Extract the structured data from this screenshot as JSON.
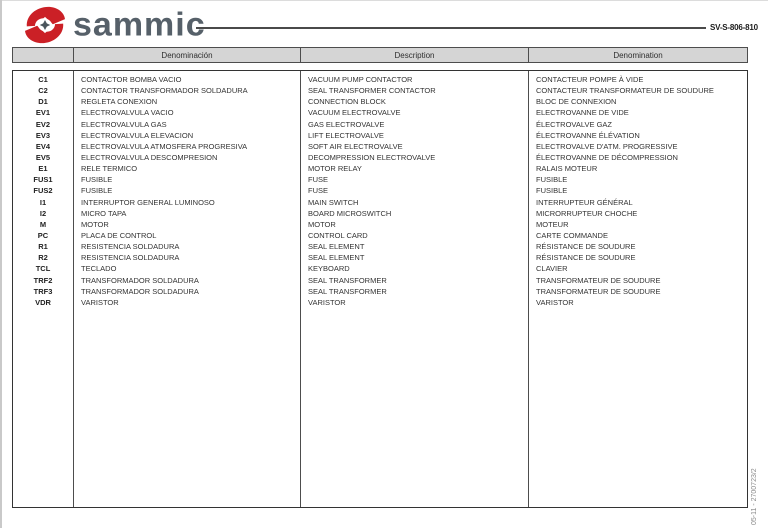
{
  "page": {
    "brand": "sammic",
    "doc_number": "SV-S-806-810",
    "side_number": "05-11 - 2700723/2"
  },
  "colors": {
    "brand_red": "#cb2026",
    "brand_grey": "#566069",
    "header_bg": "#d5d5d5",
    "border": "#333333"
  },
  "table": {
    "headers": {
      "code": "",
      "es": "Denominación",
      "en": "Description",
      "fr": "Denomination"
    },
    "rows": [
      {
        "code": "C1",
        "es": "CONTACTOR BOMBA VACIO",
        "en": "VACUUM PUMP CONTACTOR",
        "fr": "CONTACTEUR POMPE À VIDE"
      },
      {
        "code": "C2",
        "es": "CONTACTOR TRANSFORMADOR SOLDADURA",
        "en": "SEAL TRANSFORMER CONTACTOR",
        "fr": "CONTACTEUR TRANSFORMATEUR DE SOUDURE"
      },
      {
        "code": "D1",
        "es": "REGLETA CONEXION",
        "en": "CONNECTION BLOCK",
        "fr": "BLOC DE CONNEXION"
      },
      {
        "code": "EV1",
        "es": "ELECTROVALVULA VACIO",
        "en": "VACUUM ELECTROVALVE",
        "fr": "ELECTROVANNE DE VIDE"
      },
      {
        "code": "EV2",
        "es": "ELECTROVALVULA GAS",
        "en": "GAS ELECTROVALVE",
        "fr": "ÉLECTROVALVE GAZ"
      },
      {
        "code": "EV3",
        "es": "ELECTROVALVULA ELEVACION",
        "en": "LIFT ELECTROVALVE",
        "fr": "ÉLECTROVANNE ÉLÉVATION"
      },
      {
        "code": "EV4",
        "es": "ELECTROVALVULA ATMOSFERA PROGRESIVA",
        "en": "SOFT AIR ELECTROVALVE",
        "fr": "ELECTROVALVE D'ATM. PROGRESSIVE"
      },
      {
        "code": "EV5",
        "es": "ELECTROVALVULA DESCOMPRESION",
        "en": "DECOMPRESSION ELECTROVALVE",
        "fr": "ÉLECTROVANNE DE DÉCOMPRESSION"
      },
      {
        "code": "E1",
        "es": "RELE TERMICO",
        "en": "MOTOR RELAY",
        "fr": "RALAIS MOTEUR"
      },
      {
        "code": "FUS1",
        "es": "FUSIBLE",
        "en": "FUSE",
        "fr": "FUSIBLE"
      },
      {
        "code": "FUS2",
        "es": "FUSIBLE",
        "en": "FUSE",
        "fr": "FUSIBLE"
      },
      {
        "code": "I1",
        "es": "INTERRUPTOR GENERAL LUMINOSO",
        "en": "MAIN SWITCH",
        "fr": "INTERRUPTEUR GÉNÉRAL"
      },
      {
        "code": "I2",
        "es": "MICRO TAPA",
        "en": "BOARD MICROSWITCH",
        "fr": "MICRORRUPTEUR CHOCHE"
      },
      {
        "code": "M",
        "es": "MOTOR",
        "en": "MOTOR",
        "fr": "MOTEUR"
      },
      {
        "code": "PC",
        "es": "PLACA DE CONTROL",
        "en": "CONTROL CARD",
        "fr": "CARTE COMMANDE"
      },
      {
        "code": "R1",
        "es": "RESISTENCIA SOLDADURA",
        "en": "SEAL ELEMENT",
        "fr": "RÉSISTANCE DE SOUDURE"
      },
      {
        "code": "R2",
        "es": "RESISTENCIA SOLDADURA",
        "en": "SEAL ELEMENT",
        "fr": "RÉSISTANCE DE SOUDURE"
      },
      {
        "code": "TCL",
        "es": "TECLADO",
        "en": "KEYBOARD",
        "fr": "CLAVIER"
      },
      {
        "code": "TRF2",
        "es": "TRANSFORMADOR SOLDADURA",
        "en": "SEAL TRANSFORMER",
        "fr": "TRANSFORMATEUR DE SOUDURE"
      },
      {
        "code": "TRF3",
        "es": "TRANSFORMADOR SOLDADURA",
        "en": "SEAL TRANSFORMER",
        "fr": "TRANSFORMATEUR DE SOUDURE"
      },
      {
        "code": "VDR",
        "es": "VARISTOR",
        "en": "VARISTOR",
        "fr": "VARISTOR"
      }
    ]
  }
}
